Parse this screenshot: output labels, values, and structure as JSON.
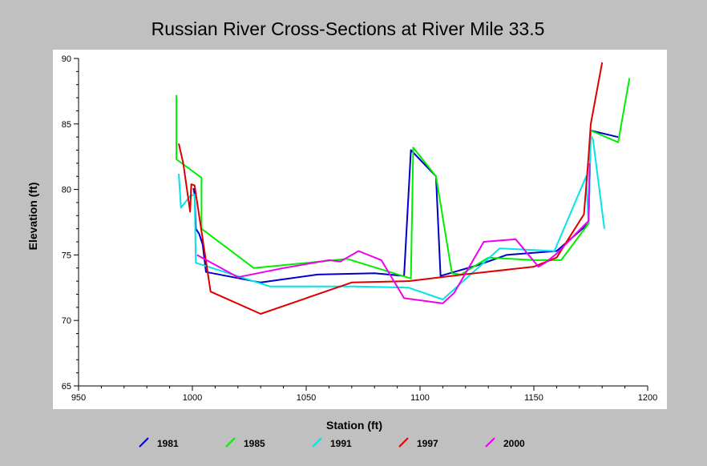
{
  "chart_data": {
    "type": "line",
    "title": "Russian River Cross-Sections at River Mile 33.5",
    "xlabel": "Station (ft)",
    "ylabel": "Elevation (ft)",
    "xlim": [
      950,
      1200
    ],
    "ylim": [
      65,
      90
    ],
    "xticks": [
      950,
      1000,
      1050,
      1100,
      1150,
      1200
    ],
    "yticks": [
      65,
      70,
      75,
      80,
      85,
      90
    ],
    "legend_position": "bottom",
    "grid": false,
    "series": [
      {
        "name": "1981",
        "color": "#0000cc",
        "points": [
          [
            1000.5,
            80.1
          ],
          [
            1001,
            79.6
          ],
          [
            1001.5,
            77
          ],
          [
            1003,
            76.6
          ],
          [
            1004.5,
            75.8
          ],
          [
            1006,
            73.7
          ],
          [
            1030,
            72.9
          ],
          [
            1055,
            73.5
          ],
          [
            1080,
            73.6
          ],
          [
            1093,
            73.4
          ],
          [
            1096,
            83
          ],
          [
            1107,
            81
          ],
          [
            1109,
            73.4
          ],
          [
            1125,
            74.2
          ],
          [
            1138,
            75
          ],
          [
            1160,
            75.3
          ],
          [
            1174,
            77.4
          ],
          [
            1175,
            84.5
          ],
          [
            1187,
            84
          ]
        ]
      },
      {
        "name": "1985",
        "color": "#00ee00",
        "points": [
          [
            993,
            87.2
          ],
          [
            993,
            82.3
          ],
          [
            1004,
            80.9
          ],
          [
            1004,
            77
          ],
          [
            1027,
            74
          ],
          [
            1068,
            74.7
          ],
          [
            1096,
            73.2
          ],
          [
            1097,
            83.2
          ],
          [
            1107,
            81
          ],
          [
            1114,
            73.6
          ],
          [
            1118,
            73.5
          ],
          [
            1130,
            74.8
          ],
          [
            1150,
            74.6
          ],
          [
            1162,
            74.6
          ],
          [
            1174,
            77.4
          ],
          [
            1175,
            84.5
          ],
          [
            1187,
            83.6
          ],
          [
            1192,
            88.5
          ]
        ]
      },
      {
        "name": "1991",
        "color": "#00e5e5",
        "points": [
          [
            994,
            81.2
          ],
          [
            995,
            78.6
          ],
          [
            999,
            79.5
          ],
          [
            1001,
            79.6
          ],
          [
            1001.5,
            74.4
          ],
          [
            1034,
            72.6
          ],
          [
            1072,
            72.6
          ],
          [
            1095,
            72.5
          ],
          [
            1110,
            71.6
          ],
          [
            1135,
            75.5
          ],
          [
            1159,
            75.3
          ],
          [
            1173,
            81
          ],
          [
            1174,
            77.5
          ],
          [
            1175,
            84.1
          ],
          [
            1176,
            83.8
          ],
          [
            1181,
            77
          ]
        ]
      },
      {
        "name": "1997",
        "color": "#dd0000",
        "points": [
          [
            994,
            83.5
          ],
          [
            996,
            82
          ],
          [
            999,
            78.3
          ],
          [
            999.5,
            80.4
          ],
          [
            1001,
            80.3
          ],
          [
            1008,
            72.2
          ],
          [
            1030,
            70.5
          ],
          [
            1070,
            72.9
          ],
          [
            1095,
            73
          ],
          [
            1119,
            73.5
          ],
          [
            1150,
            74.1
          ],
          [
            1160,
            74.8
          ],
          [
            1172,
            78.1
          ],
          [
            1174,
            82.5
          ],
          [
            1175,
            85
          ],
          [
            1180,
            89.7
          ]
        ]
      },
      {
        "name": "2000",
        "color": "#ee00ee",
        "points": [
          [
            1002,
            75
          ],
          [
            1020,
            73.3
          ],
          [
            1040,
            74
          ],
          [
            1060,
            74.6
          ],
          [
            1065,
            74.5
          ],
          [
            1073,
            75.3
          ],
          [
            1083,
            74.6
          ],
          [
            1093,
            71.7
          ],
          [
            1110,
            71.3
          ],
          [
            1115,
            72.1
          ],
          [
            1128,
            76
          ],
          [
            1142,
            76.2
          ],
          [
            1152,
            74.1
          ],
          [
            1155,
            74.4
          ],
          [
            1160,
            75.1
          ],
          [
            1170,
            76.9
          ],
          [
            1174,
            77.6
          ],
          [
            1174.5,
            82
          ]
        ]
      }
    ]
  }
}
